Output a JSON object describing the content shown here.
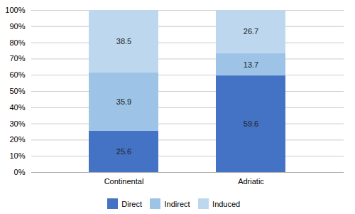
{
  "chart_data": {
    "type": "bar",
    "stacked": true,
    "categories": [
      "Continental",
      "Adriatic"
    ],
    "series": [
      {
        "name": "Direct",
        "color": "#4472C4",
        "values": [
          25.6,
          59.6
        ]
      },
      {
        "name": "Indirect",
        "color": "#9DC3E6",
        "values": [
          35.9,
          13.7
        ]
      },
      {
        "name": "Induced",
        "color": "#BDD7EE",
        "values": [
          38.5,
          26.7
        ]
      }
    ],
    "ylim": [
      0,
      100
    ],
    "yticks": [
      {
        "value": 0,
        "label": "0%"
      },
      {
        "value": 10,
        "label": "10%"
      },
      {
        "value": 20,
        "label": "20%"
      },
      {
        "value": 30,
        "label": "30%"
      },
      {
        "value": 40,
        "label": "40%"
      },
      {
        "value": 50,
        "label": "50%"
      },
      {
        "value": 60,
        "label": "60%"
      },
      {
        "value": 70,
        "label": "70%"
      },
      {
        "value": 80,
        "label": "80%"
      },
      {
        "value": 90,
        "label": "90%"
      },
      {
        "value": 100,
        "label": "100%"
      }
    ],
    "grid": true,
    "data_labels": true,
    "legend": "bottom"
  }
}
